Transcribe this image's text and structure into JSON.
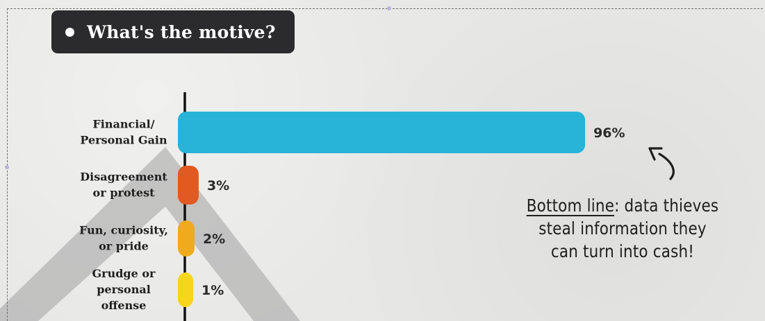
{
  "title": "What's the motive?",
  "note": {
    "underlined": "Bottom line",
    "line1_rest": ": data thieves",
    "line2": "steal information they",
    "line3": "can turn into cash!"
  },
  "colors": {
    "financial": "#28b3d8",
    "disagreement": "#e15a22",
    "fun": "#f0aa1e",
    "grudge": "#f6d51c"
  },
  "chart_data": {
    "type": "bar",
    "orientation": "horizontal",
    "categories": [
      [
        "Financial/",
        "Personal Gain"
      ],
      [
        "Disagreement",
        "or protest"
      ],
      [
        "Fun, curiosity,",
        "or pride"
      ],
      [
        "Grudge or",
        "personal",
        "offense"
      ]
    ],
    "values": [
      96,
      3,
      2,
      1
    ],
    "value_labels": [
      "96%",
      "3%",
      "2%",
      "1%"
    ],
    "colors": [
      "#28b3d8",
      "#e15a22",
      "#f0aa1e",
      "#f6d51c"
    ],
    "title": "What's the motive?",
    "xlim": [
      0,
      100
    ],
    "grid": false,
    "legend": "none"
  }
}
